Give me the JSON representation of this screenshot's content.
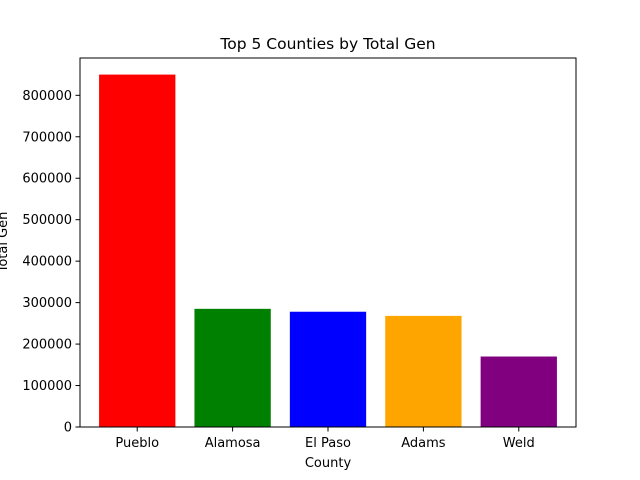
{
  "chart_data": {
    "type": "bar",
    "title": "Top 5 Counties by Total Gen",
    "xlabel": "County",
    "ylabel": "Total Gen",
    "categories": [
      "Pueblo",
      "Alamosa",
      "El Paso",
      "Adams",
      "Weld"
    ],
    "values": [
      850000,
      285000,
      278000,
      268000,
      170000
    ],
    "colors": [
      "#ff0000",
      "#008000",
      "#0000ff",
      "#ffa500",
      "#800080"
    ],
    "ylim": [
      0,
      890000
    ],
    "yticks": [
      0,
      100000,
      200000,
      300000,
      400000,
      500000,
      600000,
      700000,
      800000
    ],
    "grid": false,
    "legend": false
  }
}
